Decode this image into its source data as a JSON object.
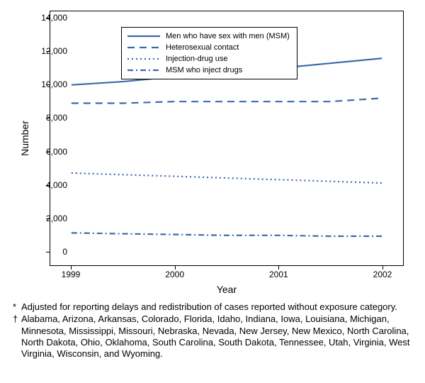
{
  "chart": {
    "type": "line",
    "background_color": "#ffffff",
    "line_color": "#3d6aa8",
    "line_width": 2.2,
    "ylabel": "Number",
    "xlabel": "Year",
    "label_fontsize": 14,
    "tick_fontsize": 12,
    "ylim": [
      0,
      14000
    ],
    "ytick_step": 2000,
    "yticks": [
      0,
      2000,
      4000,
      6000,
      8000,
      10000,
      12000,
      14000
    ],
    "ytick_labels": [
      "0",
      "2,000",
      "4,000",
      "6,000",
      "8,000",
      "10,000",
      "12,000",
      "14,000"
    ],
    "xlim": [
      1999,
      2002
    ],
    "xticks": [
      1999,
      2000,
      2001,
      2002
    ],
    "xtick_labels": [
      "1999",
      "2000",
      "2001",
      "2002"
    ],
    "series": [
      {
        "name": "Men who have sex with men (MSM)",
        "dash": "solid",
        "x": [
          1999,
          1999.5,
          2000,
          2000.5,
          2001,
          2001.5,
          2002
        ],
        "y": [
          10000,
          10200,
          10500,
          10800,
          11000,
          11300,
          11600
        ]
      },
      {
        "name": "Heterosexual contact",
        "dash": "dash",
        "x": [
          1999,
          1999.5,
          2000,
          2000.5,
          2001,
          2001.5,
          2002
        ],
        "y": [
          8900,
          8900,
          9000,
          9000,
          9000,
          9000,
          9200
        ]
      },
      {
        "name": "Injection-drug use",
        "dash": "dot",
        "x": [
          1999,
          1999.5,
          2000,
          2000.5,
          2001,
          2001.5,
          2002
        ],
        "y": [
          4700,
          4600,
          4500,
          4400,
          4300,
          4200,
          4100
        ]
      },
      {
        "name": "MSM who inject drugs",
        "dash": "dashdot",
        "x": [
          1999,
          1999.5,
          2000,
          2000.5,
          2001,
          2001.5,
          2002
        ],
        "y": [
          1100,
          1050,
          1000,
          950,
          950,
          900,
          900
        ]
      }
    ],
    "legend": {
      "position": "upper-left-inside",
      "fontsize": 11,
      "border": true
    }
  },
  "footnotes": [
    {
      "symbol": "*",
      "text": "Adjusted for reporting delays and redistribution of cases reported without exposure category."
    },
    {
      "symbol": "†",
      "text": "Alabama, Arizona, Arkansas, Colorado, Florida, Idaho, Indiana, Iowa, Louisiana, Michigan, Minnesota, Mississippi, Missouri, Nebraska, Nevada, New Jersey, New Mexico, North Carolina, North Dakota, Ohio, Oklahoma, South Carolina, South Dakota, Tennessee, Utah, Virginia, West Virginia, Wisconsin, and Wyoming."
    }
  ]
}
